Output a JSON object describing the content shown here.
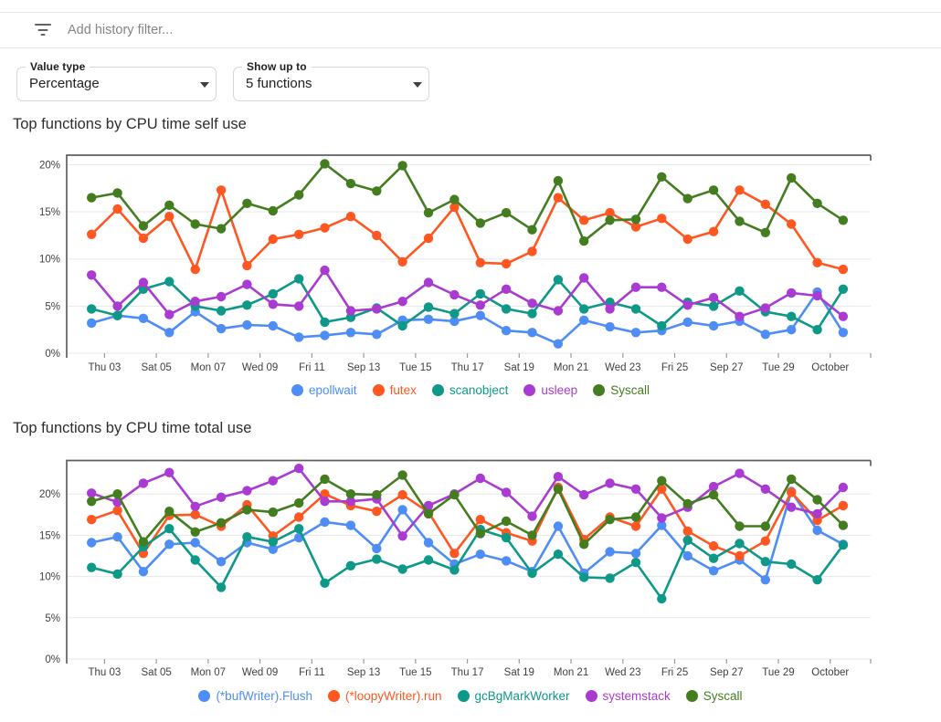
{
  "filter_bar": {
    "icon": "filter-list-icon",
    "placeholder": "Add history filter..."
  },
  "controls": {
    "value_type": {
      "label": "Value type",
      "value": "Percentage"
    },
    "show_up_to": {
      "label": "Show up to",
      "value": "5 functions"
    }
  },
  "chart_data": [
    {
      "type": "line",
      "title": "Top functions by CPU time self use",
      "unit": "%",
      "grid": true,
      "legend_position": "bottom",
      "ylim": [
        0,
        21
      ],
      "y_ticks": [
        0,
        5,
        10,
        15,
        20
      ],
      "y_tick_labels": [
        "0%",
        "5%",
        "10%",
        "15%",
        "20%"
      ],
      "x_tick_labels": [
        "Thu 03",
        "Sat 05",
        "Mon 07",
        "Wed 09",
        "Fri 11",
        "Sep 13",
        "Tue 15",
        "Thu 17",
        "Sat 19",
        "Mon 21",
        "Wed 23",
        "Fri 25",
        "Sep 27",
        "Tue 29",
        "October"
      ],
      "series": [
        {
          "name": "epollwait",
          "color": "#4e8df5",
          "values": [
            3.2,
            4.0,
            3.7,
            2.2,
            4.4,
            2.6,
            3.0,
            2.9,
            1.7,
            1.9,
            2.2,
            2.0,
            3.5,
            3.6,
            3.4,
            4.0,
            2.4,
            2.2,
            1.0,
            3.5,
            2.8,
            2.2,
            2.4,
            3.3,
            2.9,
            3.4,
            2.0,
            2.5,
            6.5,
            2.2
          ]
        },
        {
          "name": "futex",
          "color": "#ff5722",
          "values": [
            12.6,
            15.3,
            12.2,
            14.5,
            8.9,
            17.3,
            9.3,
            12.1,
            12.6,
            13.3,
            14.5,
            12.5,
            9.7,
            12.2,
            15.5,
            9.6,
            9.5,
            10.8,
            16.5,
            14.1,
            14.9,
            13.4,
            14.3,
            12.1,
            12.9,
            17.3,
            15.8,
            13.7,
            9.6,
            8.9
          ]
        },
        {
          "name": "scanobject",
          "color": "#0e9888",
          "values": [
            4.7,
            4.0,
            6.8,
            7.6,
            5.0,
            4.5,
            5.1,
            6.3,
            7.9,
            3.3,
            3.8,
            4.8,
            2.9,
            4.9,
            4.2,
            6.3,
            4.7,
            4.2,
            7.8,
            4.7,
            5.4,
            4.7,
            2.9,
            5.4,
            5.0,
            6.6,
            4.4,
            3.9,
            2.5,
            6.8
          ]
        },
        {
          "name": "usleep",
          "color": "#a93bd2",
          "values": [
            8.3,
            5.0,
            7.5,
            4.1,
            5.5,
            6.0,
            7.3,
            5.2,
            5.0,
            8.8,
            4.5,
            4.7,
            5.5,
            7.5,
            6.2,
            5.1,
            6.8,
            5.3,
            4.5,
            8.0,
            4.7,
            7.0,
            7.0,
            5.1,
            5.9,
            3.9,
            4.8,
            6.4,
            6.1,
            3.9
          ]
        },
        {
          "name": "Syscall",
          "color": "#447d20",
          "values": [
            16.5,
            17.0,
            13.5,
            15.7,
            13.7,
            13.2,
            15.9,
            15.1,
            16.8,
            20.1,
            18.0,
            17.2,
            19.9,
            14.9,
            16.3,
            13.8,
            14.9,
            13.1,
            18.3,
            11.9,
            14.1,
            14.2,
            18.7,
            16.4,
            17.3,
            14.0,
            12.8,
            18.6,
            15.9,
            14.1
          ]
        }
      ]
    },
    {
      "type": "line",
      "title": "Top functions by CPU time total use",
      "unit": "%",
      "grid": true,
      "legend_position": "bottom",
      "ylim": [
        0,
        24
      ],
      "y_ticks": [
        0,
        5,
        10,
        15,
        20
      ],
      "y_tick_labels": [
        "0%",
        "5%",
        "10%",
        "15%",
        "20%"
      ],
      "x_tick_labels": [
        "Thu 03",
        "Sat 05",
        "Mon 07",
        "Wed 09",
        "Fri 11",
        "Sep 13",
        "Tue 15",
        "Thu 17",
        "Sat 19",
        "Mon 21",
        "Wed 23",
        "Fri 25",
        "Sep 27",
        "Tue 29",
        "October"
      ],
      "series": [
        {
          "name": "(*bufWriter).Flush",
          "color": "#4e8df5",
          "values": [
            14.1,
            14.8,
            10.6,
            13.9,
            14.1,
            11.8,
            14.1,
            13.3,
            14.7,
            16.6,
            16.2,
            13.4,
            18.1,
            14.1,
            11.5,
            12.7,
            11.9,
            10.6,
            16.1,
            10.4,
            13.0,
            12.8,
            16.2,
            12.5,
            10.7,
            12.0,
            9.6,
            20.3,
            15.6,
            13.9
          ]
        },
        {
          "name": "(*loopyWriter).run",
          "color": "#ff5722",
          "values": [
            16.9,
            18.0,
            12.8,
            17.4,
            17.5,
            16.1,
            18.7,
            14.9,
            17.2,
            20.0,
            18.6,
            17.9,
            19.9,
            17.8,
            12.8,
            16.9,
            15.3,
            14.3,
            20.8,
            14.5,
            17.2,
            16.1,
            20.6,
            15.5,
            13.7,
            12.5,
            14.3,
            20.2,
            16.8,
            18.6
          ]
        },
        {
          "name": "gcBgMarkWorker",
          "color": "#0e9888",
          "values": [
            11.1,
            10.3,
            13.6,
            15.8,
            12.0,
            8.7,
            14.8,
            14.2,
            15.8,
            9.2,
            11.3,
            12.1,
            10.9,
            12.0,
            10.8,
            15.7,
            14.7,
            10.4,
            12.7,
            9.9,
            9.8,
            11.7,
            7.3,
            14.4,
            12.2,
            14.0,
            11.8,
            11.5,
            9.6,
            13.8
          ]
        },
        {
          "name": "systemstack",
          "color": "#a93bd2",
          "values": [
            20.1,
            19.0,
            21.3,
            22.6,
            18.5,
            19.6,
            20.4,
            21.6,
            23.1,
            19.1,
            19.1,
            19.4,
            14.9,
            18.6,
            20.0,
            21.9,
            20.2,
            17.3,
            22.1,
            19.9,
            21.3,
            20.6,
            17.1,
            18.4,
            20.9,
            22.5,
            20.6,
            18.4,
            17.6,
            20.8
          ]
        },
        {
          "name": "Syscall",
          "color": "#447d20",
          "values": [
            19.1,
            20.0,
            14.2,
            17.9,
            15.4,
            16.5,
            18.1,
            17.8,
            18.9,
            21.8,
            20.0,
            19.9,
            22.3,
            17.6,
            19.9,
            15.2,
            16.7,
            15.0,
            20.6,
            13.9,
            16.9,
            17.2,
            21.6,
            18.8,
            19.9,
            16.1,
            16.1,
            21.8,
            19.3,
            16.2
          ]
        }
      ]
    }
  ]
}
